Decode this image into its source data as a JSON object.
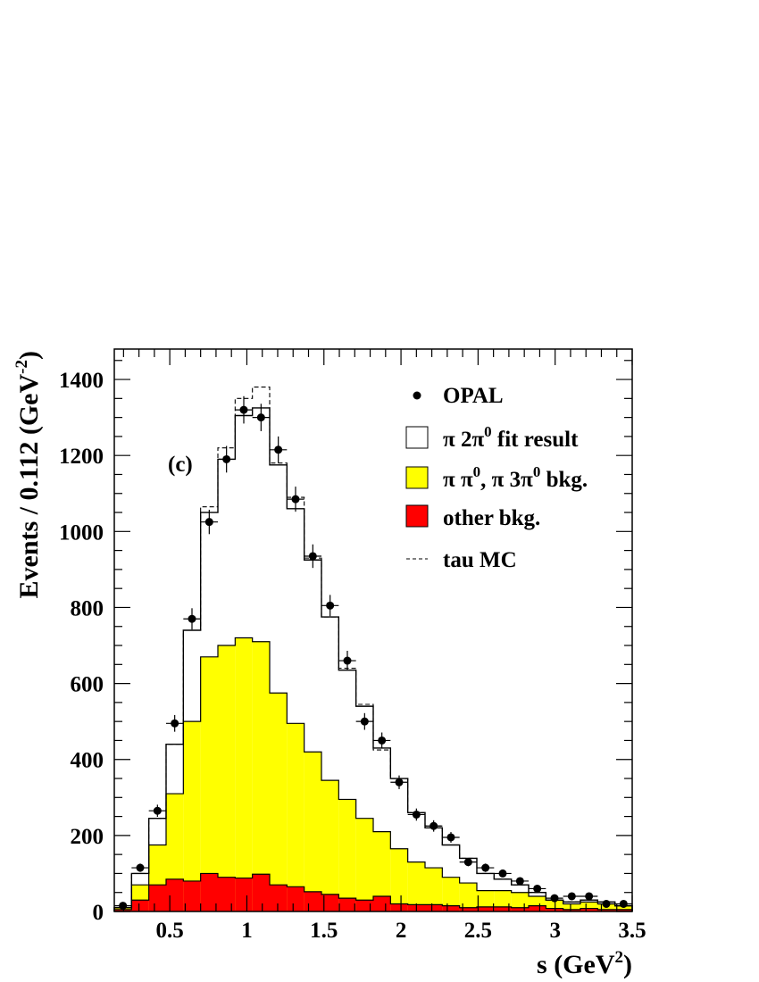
{
  "chart_data": {
    "type": "histogram",
    "title": "",
    "panel_label": "(c)",
    "xlabel": {
      "main": "s (GeV",
      "sup": "2",
      "close": ")"
    },
    "ylabel": {
      "main": "Events / 0.112 (GeV",
      "sup": "-2",
      "close": ")"
    },
    "xlim": [
      0.14,
      3.5
    ],
    "ylim": [
      0,
      1480
    ],
    "x_ticks": [
      {
        "value": 0.5,
        "label": "0.5"
      },
      {
        "value": 1.0,
        "label": "1"
      },
      {
        "value": 1.5,
        "label": "1.5"
      },
      {
        "value": 2.0,
        "label": "2"
      },
      {
        "value": 2.5,
        "label": "2.5"
      },
      {
        "value": 3.0,
        "label": "3"
      },
      {
        "value": 3.5,
        "label": "3.5"
      }
    ],
    "y_ticks": [
      {
        "value": 0,
        "label": "0"
      },
      {
        "value": 200,
        "label": "200"
      },
      {
        "value": 400,
        "label": "400"
      },
      {
        "value": 600,
        "label": "600"
      },
      {
        "value": 800,
        "label": "800"
      },
      {
        "value": 1000,
        "label": "1000"
      },
      {
        "value": 1200,
        "label": "1200"
      },
      {
        "value": 1400,
        "label": "1400"
      }
    ],
    "bin_edges": [
      0.14,
      0.252,
      0.364,
      0.476,
      0.588,
      0.7,
      0.812,
      0.924,
      1.036,
      1.148,
      1.26,
      1.372,
      1.484,
      1.596,
      1.708,
      1.82,
      1.932,
      2.044,
      2.156,
      2.268,
      2.38,
      2.492,
      2.604,
      2.716,
      2.828,
      2.94,
      3.052,
      3.164,
      3.276,
      3.388,
      3.5
    ],
    "series": [
      {
        "name": "OPAL",
        "kind": "points",
        "color": "#000000",
        "x": [
          0.196,
          0.308,
          0.42,
          0.532,
          0.644,
          0.756,
          0.868,
          0.98,
          1.092,
          1.204,
          1.316,
          1.428,
          1.54,
          1.652,
          1.764,
          1.876,
          1.988,
          2.1,
          2.212,
          2.324,
          2.436,
          2.548,
          2.66,
          2.772,
          2.884,
          2.996,
          3.108,
          3.22,
          3.332,
          3.444
        ],
        "values": [
          15,
          115,
          265,
          495,
          770,
          1025,
          1190,
          1320,
          1300,
          1215,
          1085,
          935,
          805,
          660,
          500,
          450,
          340,
          255,
          225,
          195,
          130,
          115,
          100,
          80,
          60,
          35,
          40,
          40,
          20,
          20
        ],
        "errors": [
          4,
          11,
          16,
          22,
          28,
          32,
          35,
          36,
          36,
          35,
          33,
          31,
          28,
          26,
          22,
          21,
          18,
          16,
          15,
          14,
          11,
          11,
          10,
          9,
          8,
          6,
          6,
          6,
          5,
          5
        ]
      },
      {
        "name": "π 2π⁰ fit result",
        "kind": "hist-outline",
        "color": "#000000",
        "values": [
          10,
          100,
          245,
          440,
          740,
          1050,
          1190,
          1305,
          1325,
          1175,
          1060,
          925,
          775,
          635,
          540,
          430,
          350,
          260,
          220,
          175,
          140,
          100,
          85,
          70,
          50,
          30,
          25,
          30,
          25,
          15
        ]
      },
      {
        "name": "π π⁰, π 3π⁰ bkg.",
        "kind": "hist-filled",
        "color": "#ffff00",
        "values": [
          10,
          70,
          175,
          310,
          500,
          670,
          700,
          720,
          710,
          575,
          495,
          420,
          345,
          295,
          245,
          210,
          165,
          130,
          115,
          90,
          75,
          55,
          55,
          50,
          40,
          30,
          20,
          25,
          20,
          15
        ]
      },
      {
        "name": "other bkg.",
        "kind": "hist-filled",
        "color": "#ff0000",
        "values": [
          5,
          30,
          70,
          85,
          80,
          100,
          90,
          88,
          98,
          70,
          65,
          52,
          45,
          35,
          30,
          40,
          20,
          18,
          18,
          15,
          10,
          12,
          12,
          10,
          15,
          8,
          5,
          8,
          5,
          5
        ]
      },
      {
        "name": "tau MC",
        "kind": "hist-dashed",
        "color": "#000000",
        "values": [
          10,
          100,
          245,
          440,
          740,
          1065,
          1220,
          1350,
          1380,
          1180,
          1090,
          930,
          775,
          640,
          545,
          425,
          350,
          260,
          225,
          175,
          140,
          100,
          85,
          70,
          50,
          30,
          25,
          30,
          25,
          15
        ]
      }
    ],
    "legend": {
      "placement": "top-right",
      "entries": [
        {
          "text": "OPAL",
          "symbol": "dot"
        },
        {
          "text": "π 2π",
          "sup": "0",
          "rest": " fit result",
          "symbol": "open-box"
        },
        {
          "text": "π π",
          "sup": "0",
          "rest": ", π 3π",
          "sup2": "0",
          "rest2": " bkg.",
          "symbol": "yellow-box"
        },
        {
          "text": "other bkg.",
          "symbol": "red-box"
        },
        {
          "text": "tau MC",
          "symbol": "dashed-line"
        }
      ]
    },
    "colors": {
      "yellow": "#ffff00",
      "red": "#ff0000",
      "ink": "#000000"
    }
  }
}
